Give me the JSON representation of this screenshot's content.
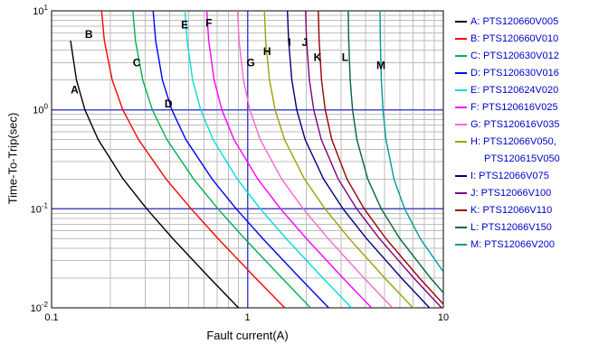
{
  "chart_data": {
    "type": "line",
    "title": "",
    "xlabel": "Fault current(A)",
    "ylabel": "Time-To-Trip(sec)",
    "x_scale": "log",
    "y_scale": "log",
    "x_range": [
      0.1,
      10
    ],
    "y_range": [
      0.01,
      10
    ],
    "grid": "log major+minor gridlines, gray; major lines at x=1, y=1, y=0.1 highlighted blue",
    "x_ticks": [
      {
        "v": 0.1,
        "t": "0.1"
      },
      {
        "v": 1,
        "t": "1"
      },
      {
        "v": 10,
        "t": "10"
      }
    ],
    "y_ticks": [
      {
        "v": 10,
        "base": "10",
        "exp": "1"
      },
      {
        "v": 1,
        "base": "10",
        "exp": "0"
      },
      {
        "v": 0.1,
        "base": "10",
        "exp": "-1"
      },
      {
        "v": 0.01,
        "base": "10",
        "exp": "-2"
      }
    ],
    "marker_lines": {
      "color": "#4747cc",
      "vertical_x": [
        1.0
      ],
      "horizontal_y": [
        1.0,
        0.1
      ]
    },
    "series": [
      {
        "letter": "A",
        "name": "PTS120660V005",
        "color": "#000000",
        "label_pos": [
          0.131,
          1.6
        ],
        "points": [
          [
            0.125,
            5
          ],
          [
            0.134,
            2
          ],
          [
            0.148,
            1
          ],
          [
            0.173,
            0.5
          ],
          [
            0.232,
            0.2
          ],
          [
            0.306,
            0.1
          ],
          [
            0.416,
            0.05
          ],
          [
            0.642,
            0.02
          ],
          [
            0.9,
            0.01
          ]
        ]
      },
      {
        "letter": "B",
        "name": "PTS120660V010",
        "color": "#ff0000",
        "label_pos": [
          0.155,
          5.8
        ],
        "points": [
          [
            0.18,
            10
          ],
          [
            0.186,
            5
          ],
          [
            0.204,
            2
          ],
          [
            0.231,
            1
          ],
          [
            0.278,
            0.5
          ],
          [
            0.384,
            0.2
          ],
          [
            0.516,
            0.1
          ],
          [
            0.708,
            0.05
          ],
          [
            1.1,
            0.02
          ],
          [
            1.55,
            0.01
          ]
        ]
      },
      {
        "letter": "C",
        "name": "PTS120630V012",
        "color": "#00b050",
        "label_pos": [
          0.272,
          3.0
        ],
        "points": [
          [
            0.26,
            10
          ],
          [
            0.268,
            5
          ],
          [
            0.292,
            2
          ],
          [
            0.327,
            1
          ],
          [
            0.388,
            0.5
          ],
          [
            0.531,
            0.2
          ],
          [
            0.707,
            0.1
          ],
          [
            0.968,
            0.05
          ],
          [
            1.5,
            0.02
          ],
          [
            2.1,
            0.01
          ]
        ]
      },
      {
        "letter": "D",
        "name": "PTS120630V016",
        "color": "#0000ff",
        "label_pos": [
          0.395,
          1.15
        ],
        "points": [
          [
            0.33,
            10
          ],
          [
            0.34,
            5
          ],
          [
            0.368,
            2
          ],
          [
            0.411,
            1
          ],
          [
            0.485,
            0.5
          ],
          [
            0.66,
            0.2
          ],
          [
            0.876,
            0.1
          ],
          [
            1.198,
            0.05
          ],
          [
            1.853,
            0.02
          ],
          [
            2.6,
            0.01
          ]
        ]
      },
      {
        "letter": "E",
        "name": "PTS120624V020",
        "color": "#00dddd",
        "label_pos": [
          0.478,
          7.2
        ],
        "points": [
          [
            0.48,
            10
          ],
          [
            0.492,
            5
          ],
          [
            0.525,
            2
          ],
          [
            0.577,
            1
          ],
          [
            0.668,
            0.5
          ],
          [
            0.887,
            0.2
          ],
          [
            1.163,
            0.1
          ],
          [
            1.577,
            0.05
          ],
          [
            2.427,
            0.02
          ],
          [
            3.4,
            0.01
          ]
        ]
      },
      {
        "letter": "F",
        "name": "PTS120616V025",
        "color": "#ff00ff",
        "label_pos": [
          0.635,
          7.5
        ],
        "points": [
          [
            0.62,
            10
          ],
          [
            0.634,
            5
          ],
          [
            0.676,
            2
          ],
          [
            0.74,
            1
          ],
          [
            0.854,
            0.5
          ],
          [
            1.129,
            0.2
          ],
          [
            1.477,
            0.1
          ],
          [
            2.0,
            0.05
          ],
          [
            3.074,
            0.02
          ],
          [
            4.3,
            0.01
          ]
        ]
      },
      {
        "letter": "G",
        "name": "PTS120616V035",
        "color": "#ff66cc",
        "label_pos": [
          1.04,
          3.0
        ],
        "points": [
          [
            0.89,
            10
          ],
          [
            0.906,
            5
          ],
          [
            0.954,
            2
          ],
          [
            1.028,
            1
          ],
          [
            1.163,
            0.5
          ],
          [
            1.496,
            0.2
          ],
          [
            1.927,
            0.1
          ],
          [
            2.581,
            0.05
          ],
          [
            3.938,
            0.02
          ],
          [
            5.5,
            0.01
          ]
        ]
      },
      {
        "letter": "H",
        "name": "PTS12066V050, PTS120615V050",
        "color": "#a0a000",
        "label_pos": [
          1.26,
          3.9
        ],
        "points": [
          [
            1.22,
            10
          ],
          [
            1.239,
            5
          ],
          [
            1.296,
            2
          ],
          [
            1.384,
            1
          ],
          [
            1.547,
            0.5
          ],
          [
            1.954,
            0.2
          ],
          [
            2.489,
            0.1
          ],
          [
            3.309,
            0.05
          ],
          [
            5.022,
            0.02
          ],
          [
            7.0,
            0.01
          ]
        ]
      },
      {
        "letter": "I",
        "name": "PTS12066V075",
        "color": "#000080",
        "label_pos": [
          1.64,
          4.8
        ],
        "points": [
          [
            1.6,
            10
          ],
          [
            1.622,
            5
          ],
          [
            1.685,
            2
          ],
          [
            1.785,
            1
          ],
          [
            1.971,
            0.5
          ],
          [
            2.445,
            0.2
          ],
          [
            3.076,
            0.1
          ],
          [
            4.054,
            0.05
          ],
          [
            6.112,
            0.02
          ],
          [
            8.5,
            0.01
          ]
        ]
      },
      {
        "letter": "J",
        "name": "PTS12066V100",
        "color": "#800080",
        "label_pos": [
          1.96,
          4.8
        ],
        "points": [
          [
            1.98,
            10
          ],
          [
            2.003,
            5
          ],
          [
            2.071,
            2
          ],
          [
            2.18,
            1
          ],
          [
            2.382,
            0.5
          ],
          [
            2.905,
            0.2
          ],
          [
            3.613,
            0.1
          ],
          [
            4.72,
            0.05
          ],
          [
            7.068,
            0.02
          ],
          [
            9.8,
            0.01
          ]
        ]
      },
      {
        "letter": "K",
        "name": "PTS12066V110",
        "color": "#990000",
        "label_pos": [
          2.28,
          3.4
        ],
        "points": [
          [
            2.3,
            10
          ],
          [
            2.322,
            5
          ],
          [
            2.389,
            2
          ],
          [
            2.495,
            1
          ],
          [
            2.695,
            0.5
          ],
          [
            3.221,
            0.2
          ],
          [
            3.945,
            0.1
          ],
          [
            5.092,
            0.05
          ],
          [
            7.553,
            0.02
          ],
          [
            10.0,
            0.0109
          ]
        ]
      },
      {
        "letter": "L",
        "name": "PTS12066V150",
        "color": "#006633",
        "label_pos": [
          3.15,
          3.4
        ],
        "points": [
          [
            3.27,
            10
          ],
          [
            3.289,
            5
          ],
          [
            3.347,
            2
          ],
          [
            3.44,
            1
          ],
          [
            3.62,
            0.5
          ],
          [
            4.112,
            0.2
          ],
          [
            4.822,
            0.1
          ],
          [
            5.994,
            0.05
          ],
          [
            8.6,
            0.02
          ],
          [
            10.0,
            0.0142
          ]
        ]
      },
      {
        "letter": "M",
        "name": "PTS12066V200",
        "color": "#009999",
        "label_pos": [
          4.8,
          2.8
        ],
        "points": [
          [
            4.75,
            10
          ],
          [
            4.769,
            5
          ],
          [
            4.825,
            2
          ],
          [
            4.917,
            1
          ],
          [
            5.095,
            0.5
          ],
          [
            5.598,
            0.2
          ],
          [
            6.347,
            0.1
          ],
          [
            7.629,
            0.05
          ],
          [
            10.0,
            0.0231
          ]
        ]
      }
    ],
    "legend": [
      {
        "color": "#000000",
        "lines": [
          "A: PTS120660V005"
        ]
      },
      {
        "color": "#ff0000",
        "lines": [
          "B: PTS120660V010"
        ]
      },
      {
        "color": "#00b050",
        "lines": [
          "C: PTS120630V012"
        ]
      },
      {
        "color": "#0000ff",
        "lines": [
          "D: PTS120630V016"
        ]
      },
      {
        "color": "#00dddd",
        "lines": [
          "E: PTS120624V020"
        ]
      },
      {
        "color": "#ff00ff",
        "lines": [
          "F: PTS120616V025"
        ]
      },
      {
        "color": "#ff66cc",
        "lines": [
          "G: PTS120616V035"
        ]
      },
      {
        "color": "#a0a000",
        "lines": [
          "H: PTS12066V050,",
          "PTS120615V050"
        ]
      },
      {
        "color": "#000080",
        "lines": [
          "I: PTS12066V075"
        ]
      },
      {
        "color": "#800080",
        "lines": [
          "J: PTS12066V100"
        ]
      },
      {
        "color": "#990000",
        "lines": [
          "K: PTS12066V110"
        ]
      },
      {
        "color": "#006633",
        "lines": [
          "L: PTS12066V150"
        ]
      },
      {
        "color": "#009999",
        "lines": [
          "M: PTS12066V200"
        ]
      }
    ],
    "colors": {
      "grid": "#bdbdbd",
      "border": "#000000",
      "marker": "#4747cc",
      "legend_text": "#0000c8",
      "curve_label_text": "#000000"
    }
  }
}
